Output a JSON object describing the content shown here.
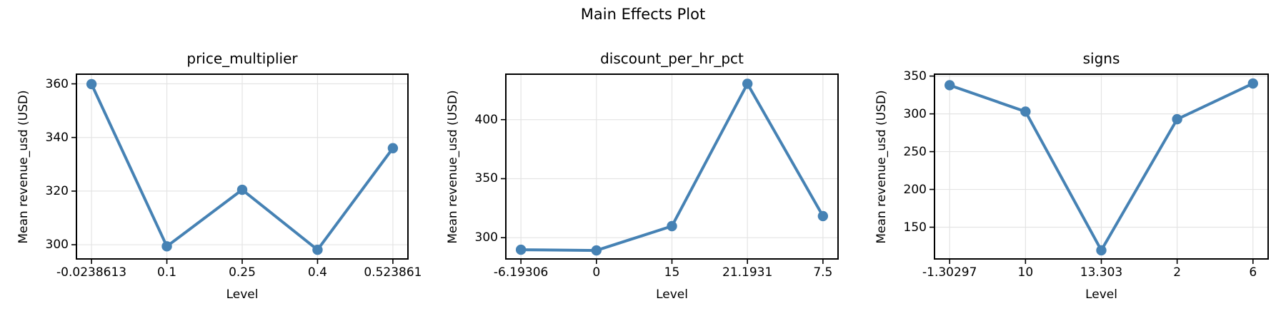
{
  "figure": {
    "title": "Main Effects Plot"
  },
  "colors": {
    "line": "#4682B4",
    "marker": "#4682B4",
    "grid": "#e4e4e4",
    "spine": "#000000",
    "text": "#000000"
  },
  "chart_data": [
    {
      "type": "line",
      "title": "price_multiplier",
      "xlabel": "Level",
      "ylabel": "Mean revenue_usd (USD)",
      "categories": [
        "-0.0238613",
        "0.1",
        "0.25",
        "0.4",
        "0.523861"
      ],
      "values": [
        359.9,
        299.4,
        320.5,
        298.1,
        336.0
      ],
      "yticks": [
        300,
        320,
        340,
        360
      ],
      "ylim": [
        294.7,
        363.6
      ],
      "grid": true,
      "legend": "none"
    },
    {
      "type": "line",
      "title": "discount_per_hr_pct",
      "xlabel": "Level",
      "ylabel": "Mean revenue_usd (USD)",
      "categories": [
        "-6.19306",
        "0",
        "15",
        "21.1931",
        "7.5"
      ],
      "values": [
        289.8,
        289.2,
        309.8,
        430.4,
        318.3
      ],
      "yticks": [
        300,
        350,
        400
      ],
      "ylim": [
        282.0,
        438.5
      ],
      "grid": true,
      "legend": "none"
    },
    {
      "type": "line",
      "title": "signs",
      "xlabel": "Level",
      "ylabel": "Mean revenue_usd (USD)",
      "categories": [
        "-1.30297",
        "10",
        "13.303",
        "2",
        "6"
      ],
      "values": [
        337.9,
        303.0,
        119.4,
        292.9,
        340.2
      ],
      "yticks": [
        150,
        200,
        250,
        300,
        350
      ],
      "ylim": [
        108.0,
        352.5
      ],
      "grid": true,
      "legend": "none"
    }
  ]
}
